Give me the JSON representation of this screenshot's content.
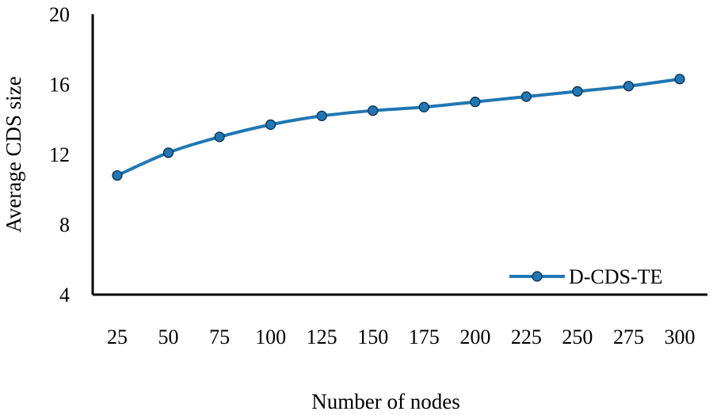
{
  "chart_data": {
    "type": "line",
    "title": "",
    "xlabel": "Number of nodes",
    "ylabel": "Average CDS size",
    "categories": [
      "25",
      "50",
      "75",
      "100",
      "125",
      "150",
      "175",
      "200",
      "225",
      "250",
      "275",
      "300"
    ],
    "y_ticks": [
      "20",
      "16",
      "12",
      "8",
      "4"
    ],
    "ylim": [
      4,
      20
    ],
    "grid": false,
    "legend_position": "bottom-right",
    "series": [
      {
        "name": "D-CDS-TE",
        "color": "#1f77b4",
        "values": [
          10.8,
          12.1,
          13.0,
          13.7,
          14.2,
          14.5,
          14.7,
          15.0,
          15.3,
          15.6,
          15.9,
          16.3
        ]
      }
    ]
  }
}
